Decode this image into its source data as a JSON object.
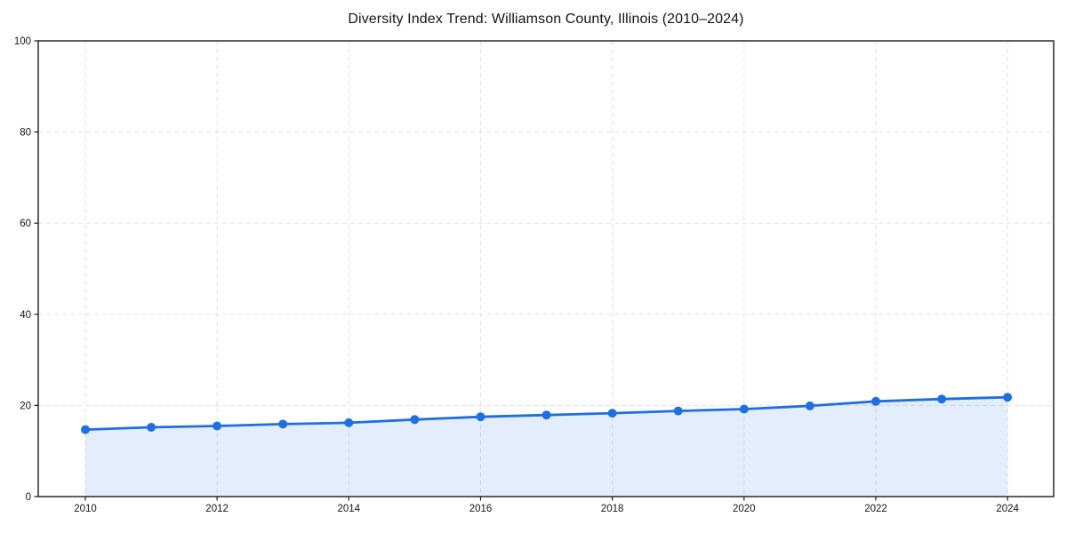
{
  "page": {
    "background": "#ffffff"
  },
  "chart_data": {
    "type": "area",
    "title": "Diversity Index Trend: Williamson County, Illinois (2010–2024)",
    "series_name": "Diversity Index",
    "x": [
      2010,
      2011,
      2012,
      2013,
      2014,
      2015,
      2016,
      2017,
      2018,
      2019,
      2020,
      2021,
      2022,
      2023,
      2024
    ],
    "values": [
      14.7,
      15.2,
      15.5,
      15.9,
      16.2,
      16.9,
      17.5,
      17.9,
      18.3,
      18.8,
      19.2,
      19.9,
      20.9,
      21.4,
      21.8
    ],
    "xlabel": "",
    "ylabel": "",
    "xlim": [
      2009.285,
      2024.7
    ],
    "ylim": [
      0,
      100
    ],
    "x_ticks": [
      2010,
      2012,
      2014,
      2016,
      2018,
      2020,
      2022,
      2024
    ],
    "y_ticks": [
      0,
      20,
      40,
      60,
      80,
      100
    ],
    "grid": "dashed",
    "legend": "none",
    "marker": "circle",
    "colors": {
      "line": "#1f6fe0",
      "marker": "#1f6fe0",
      "fill": "rgba(31, 111, 224, 0.12)",
      "grid": "#e2e2e2",
      "spine": "#1a1a1a",
      "text": "#141414",
      "background": "#ffffff"
    }
  }
}
